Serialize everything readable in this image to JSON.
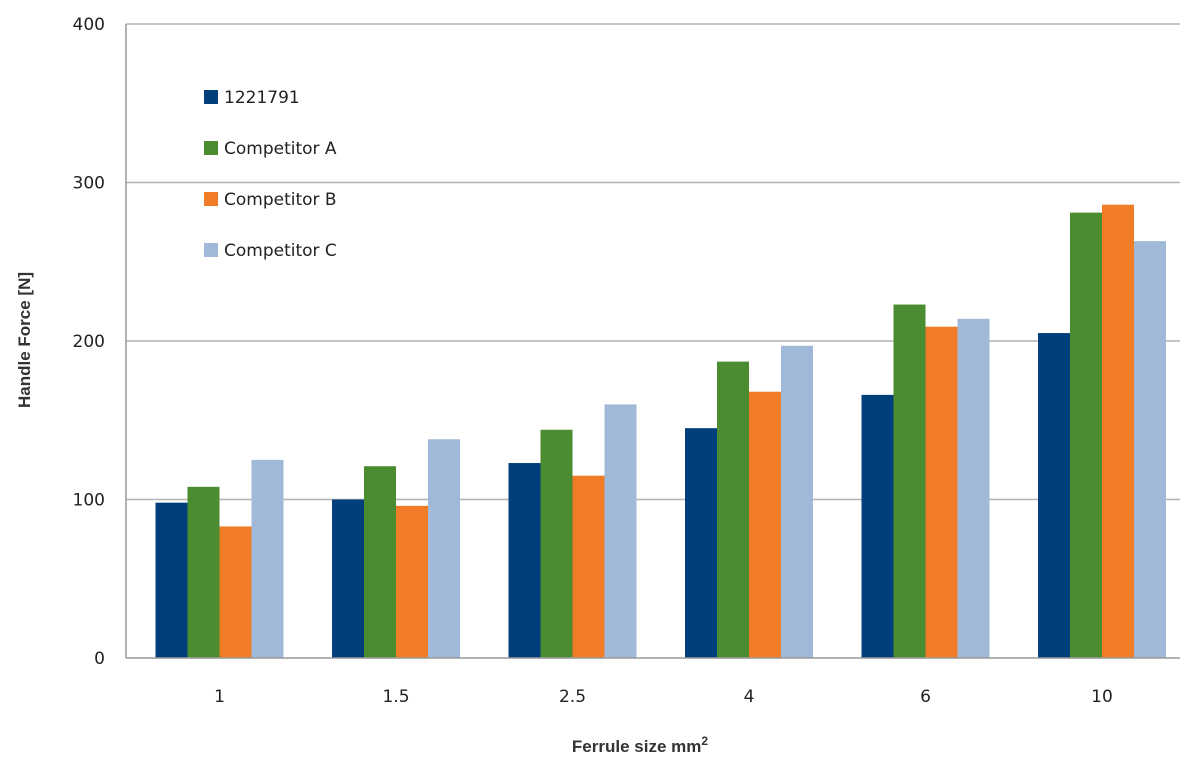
{
  "chart_data": {
    "type": "bar",
    "title": "",
    "xlabel": "Ferrule size mm",
    "xlabel_superscript": "2",
    "ylabel": "Handle Force [N]",
    "categories": [
      "1",
      "1.5",
      "2.5",
      "4",
      "6",
      "10"
    ],
    "ylim": [
      0,
      400
    ],
    "yticks": [
      0,
      100,
      200,
      300,
      400
    ],
    "grid": true,
    "legend_position": "top-left",
    "series": [
      {
        "name": "1221791",
        "color": "#003f7b",
        "values": [
          98,
          100,
          123,
          145,
          166,
          205
        ]
      },
      {
        "name": "Competitor A",
        "color": "#4a8c2f",
        "values": [
          108,
          121,
          144,
          187,
          223,
          281
        ]
      },
      {
        "name": "Competitor B",
        "color": "#f07c28",
        "values": [
          83,
          96,
          115,
          168,
          209,
          286
        ]
      },
      {
        "name": "Competitor C",
        "color": "#a0b9d9",
        "values": [
          125,
          138,
          160,
          197,
          214,
          263
        ]
      }
    ]
  }
}
